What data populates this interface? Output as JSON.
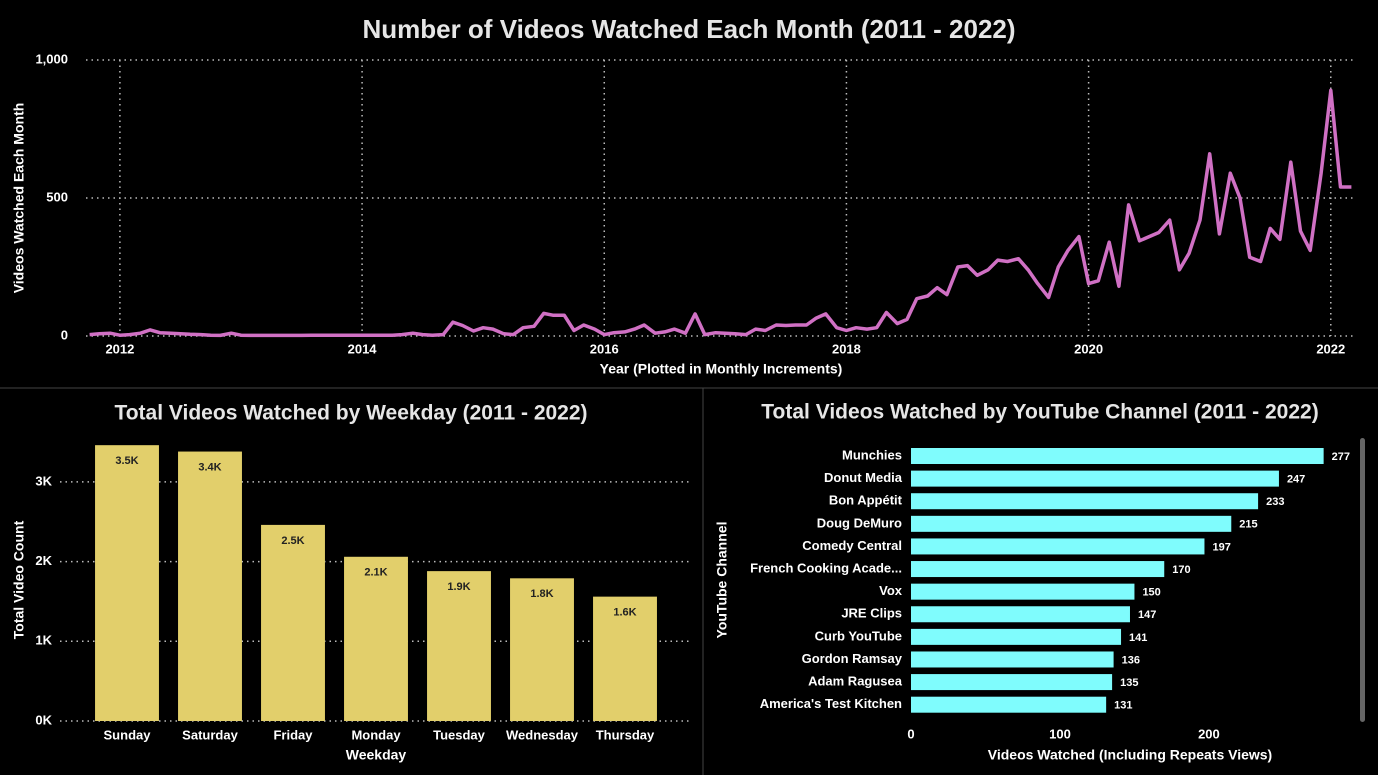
{
  "chart_data": [
    {
      "type": "line",
      "title": "Number of Videos Watched Each Month (2011 - 2022)",
      "x_label": "Year (Plotted in Monthly Increments)",
      "y_label": "Videos Watched Each Month",
      "color": "#d070c4",
      "grid": true,
      "xlim": [
        2011.72,
        2022.2
      ],
      "xticks": [
        2012,
        2014,
        2016,
        2018,
        2020,
        2022
      ],
      "ylim": [
        0,
        1000
      ],
      "yticks": [
        0,
        500,
        {
          "value": 1000,
          "label": "1,000"
        }
      ],
      "x": [
        2011.75,
        2011.83,
        2011.92,
        2012,
        2012.08,
        2012.17,
        2012.25,
        2012.33,
        2012.42,
        2012.5,
        2012.58,
        2012.67,
        2012.75,
        2012.83,
        2012.92,
        2013,
        2013.08,
        2013.17,
        2013.25,
        2013.33,
        2013.42,
        2013.5,
        2013.58,
        2013.67,
        2013.75,
        2013.83,
        2013.92,
        2014,
        2014.08,
        2014.17,
        2014.25,
        2014.33,
        2014.42,
        2014.5,
        2014.58,
        2014.67,
        2014.75,
        2014.83,
        2014.92,
        2015,
        2015.08,
        2015.17,
        2015.25,
        2015.33,
        2015.42,
        2015.5,
        2015.58,
        2015.67,
        2015.75,
        2015.83,
        2015.92,
        2016,
        2016.08,
        2016.17,
        2016.25,
        2016.33,
        2016.42,
        2016.5,
        2016.58,
        2016.67,
        2016.75,
        2016.83,
        2016.92,
        2017,
        2017.08,
        2017.17,
        2017.25,
        2017.33,
        2017.42,
        2017.5,
        2017.58,
        2017.67,
        2017.75,
        2017.83,
        2017.92,
        2018,
        2018.08,
        2018.17,
        2018.25,
        2018.33,
        2018.42,
        2018.5,
        2018.58,
        2018.67,
        2018.75,
        2018.83,
        2018.92,
        2019,
        2019.08,
        2019.17,
        2019.25,
        2019.33,
        2019.42,
        2019.5,
        2019.58,
        2019.67,
        2019.75,
        2019.83,
        2019.92,
        2020,
        2020.08,
        2020.17,
        2020.25,
        2020.33,
        2020.42,
        2020.5,
        2020.58,
        2020.67,
        2020.75,
        2020.83,
        2020.92,
        2021,
        2021.08,
        2021.17,
        2021.25,
        2021.33,
        2021.42,
        2021.5,
        2021.58,
        2021.67,
        2021.75,
        2021.83,
        2021.92,
        2022,
        2022.08,
        2022.17
      ],
      "values": [
        5,
        8,
        10,
        3,
        5,
        10,
        22,
        12,
        10,
        8,
        6,
        5,
        3,
        2,
        10,
        3,
        2,
        2,
        2,
        2,
        2,
        2,
        3,
        3,
        3,
        3,
        3,
        3,
        3,
        3,
        3,
        5,
        10,
        5,
        3,
        5,
        50,
        38,
        18,
        30,
        25,
        8,
        5,
        30,
        35,
        82,
        75,
        75,
        20,
        40,
        25,
        5,
        12,
        15,
        25,
        40,
        10,
        15,
        25,
        10,
        80,
        5,
        12,
        10,
        8,
        5,
        25,
        20,
        40,
        38,
        40,
        40,
        65,
        80,
        30,
        20,
        30,
        25,
        30,
        85,
        45,
        60,
        135,
        145,
        175,
        150,
        250,
        255,
        220,
        240,
        275,
        270,
        280,
        240,
        190,
        140,
        250,
        310,
        360,
        190,
        200,
        340,
        180,
        475,
        345,
        360,
        375,
        420,
        240,
        300,
        420,
        660,
        370,
        590,
        500,
        285,
        270,
        390,
        350,
        630,
        380,
        310,
        590,
        890,
        540,
        540
      ]
    },
    {
      "type": "bar",
      "title": "Total Videos Watched by Weekday (2011 - 2022)",
      "x_label": "Weekday",
      "y_label": "Total Video Count",
      "color": "#e2cf6b",
      "grid": true,
      "categories": [
        "Sunday",
        "Saturday",
        "Friday",
        "Monday",
        "Tuesday",
        "Wednesday",
        "Thursday"
      ],
      "values": [
        3460,
        3380,
        2460,
        2060,
        1880,
        1790,
        1560
      ],
      "value_labels": [
        "3.5K",
        "3.4K",
        "2.5K",
        "2.1K",
        "1.9K",
        "1.8K",
        "1.6K"
      ],
      "ylim": [
        0,
        3550
      ],
      "yticks": [
        {
          "value": 0,
          "label": "0K"
        },
        {
          "value": 1000,
          "label": "1K"
        },
        {
          "value": 2000,
          "label": "2K"
        },
        {
          "value": 3000,
          "label": "3K"
        }
      ]
    },
    {
      "type": "bar",
      "orientation": "horizontal",
      "title": "Total Videos Watched by YouTube Channel (2011 - 2022)",
      "x_label": "Videos Watched (Including Repeats Views)",
      "y_label": "YouTube Channel",
      "color": "#7ffcfd",
      "grid": false,
      "categories": [
        "Munchies",
        "Donut Media",
        "Bon Appétit",
        "Doug DeMuro",
        "Comedy Central",
        "French Cooking Acade...",
        "Vox",
        "JRE Clips",
        "Curb YouTube",
        "Gordon Ramsay",
        "Adam Ragusea",
        "America's Test Kitchen"
      ],
      "values": [
        277,
        247,
        233,
        215,
        197,
        170,
        150,
        147,
        141,
        136,
        135,
        131
      ],
      "xlim": [
        0,
        290
      ],
      "xticks": [
        0,
        100,
        200
      ]
    }
  ]
}
